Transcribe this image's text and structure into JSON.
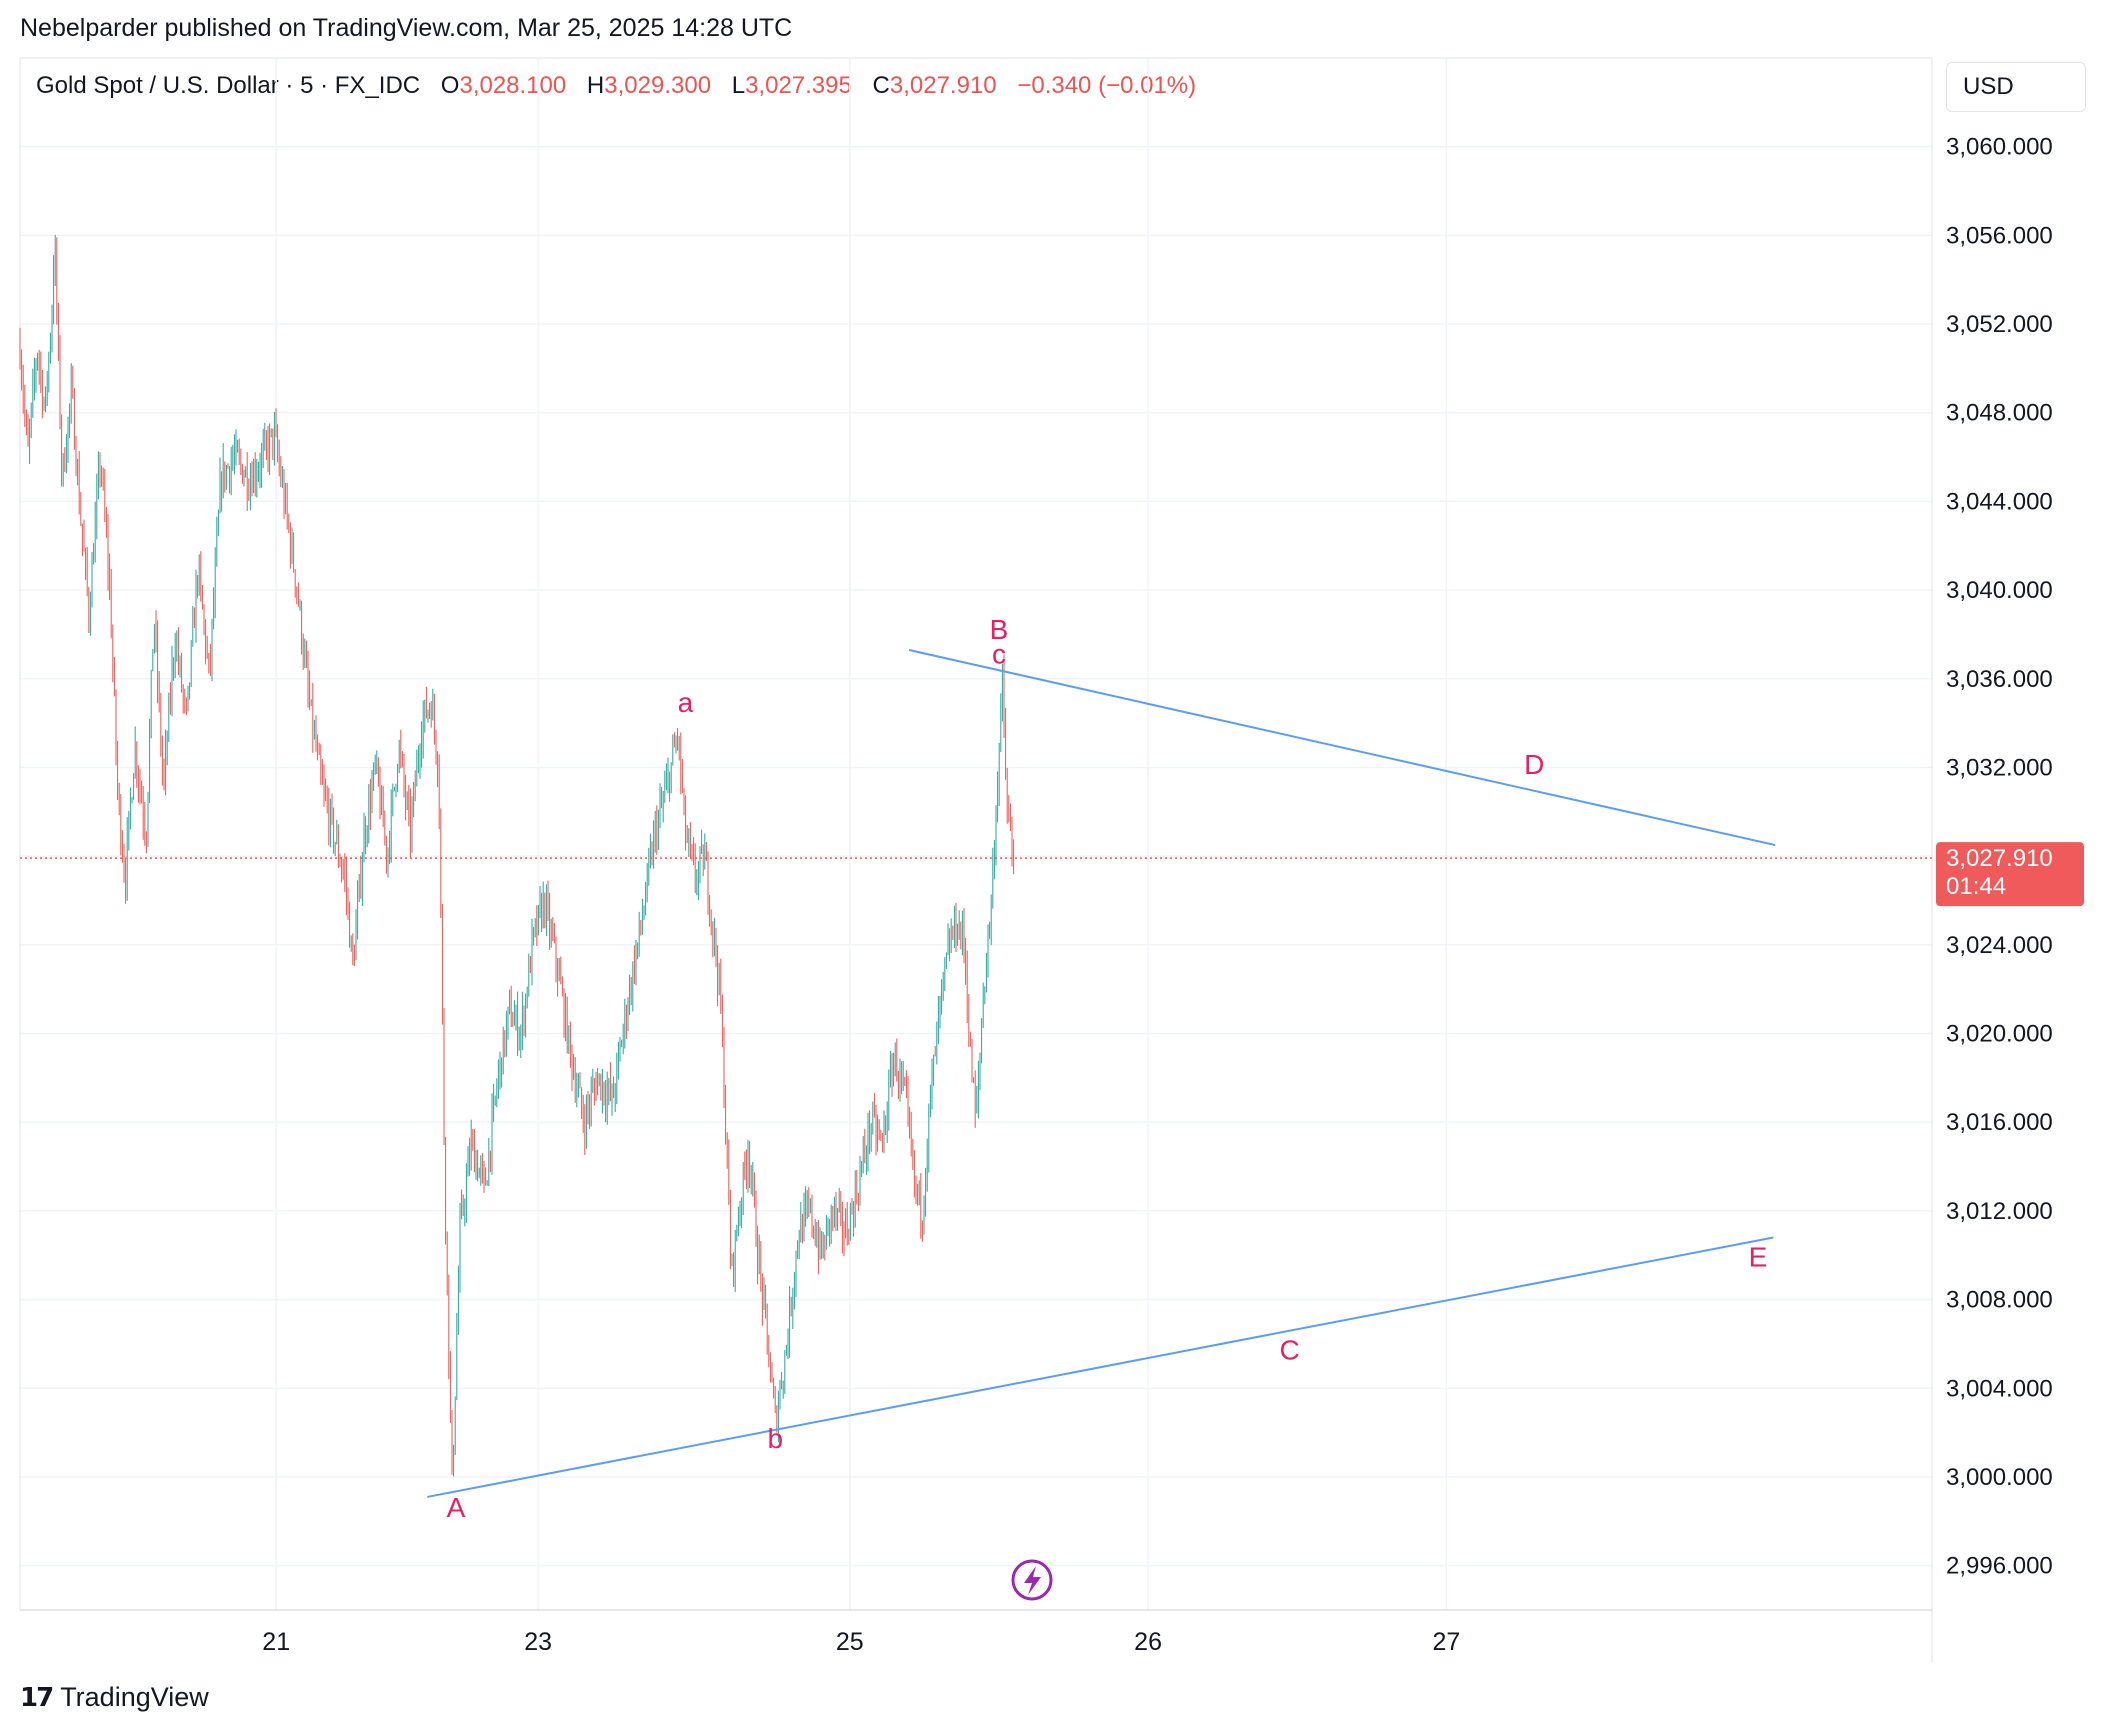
{
  "header": {
    "published": "Nebelparder published on TradingView.com, Mar 25, 2025 14:28 UTC"
  },
  "legend": {
    "symbol": "Gold Spot / U.S. Dollar · 5 · FX_IDC",
    "open_label": "O",
    "open": "3,028.100",
    "high_label": "H",
    "high": "3,029.300",
    "low_label": "L",
    "low": "3,027.395",
    "close_label": "C",
    "close": "3,027.910",
    "change": "−0.340 (−0.01%)"
  },
  "currency": "USD",
  "price_tag": {
    "value": "3,027.910",
    "countdown": "01:44"
  },
  "brand": {
    "logo": "17",
    "name": "TradingView"
  },
  "colors": {
    "up": "#26a69a",
    "down": "#ef5350",
    "trendline": "#5b9cf6",
    "wave_label": "#e91e63",
    "tag_bg": "#f05a5a"
  },
  "chart_data": {
    "type": "candlestick",
    "ylim": [
      2994,
      3064
    ],
    "yticks": [
      2996,
      3000,
      3004,
      3008,
      3012,
      3016,
      3020,
      3024,
      3028,
      3032,
      3036,
      3040,
      3044,
      3048,
      3052,
      3056,
      3060
    ],
    "ytick_labels": [
      "2,996.000",
      "3,000.000",
      "3,004.000",
      "3,008.000",
      "3,012.000",
      "3,016.000",
      "3,020.000",
      "3,024.000",
      "",
      "3,032.000",
      "3,036.000",
      "3,040.000",
      "3,044.000",
      "3,048.000",
      "3,052.000",
      "3,056.000",
      "3,060.000"
    ],
    "x_labels": [
      {
        "label": "21",
        "x": 0.134
      },
      {
        "label": "23",
        "x": 0.271
      },
      {
        "label": "25",
        "x": 0.434
      },
      {
        "label": "26",
        "x": 0.59
      },
      {
        "label": "27",
        "x": 0.746
      }
    ],
    "last_price": 3027.91,
    "price_path": [
      [
        0.0,
        3051
      ],
      [
        0.004,
        3046
      ],
      [
        0.009,
        3051
      ],
      [
        0.013,
        3048
      ],
      [
        0.017,
        3053
      ],
      [
        0.018,
        3056
      ],
      [
        0.022,
        3045
      ],
      [
        0.027,
        3049
      ],
      [
        0.031,
        3044
      ],
      [
        0.036,
        3039
      ],
      [
        0.042,
        3046
      ],
      [
        0.047,
        3040
      ],
      [
        0.051,
        3031
      ],
      [
        0.055,
        3027
      ],
      [
        0.06,
        3033
      ],
      [
        0.066,
        3029
      ],
      [
        0.07,
        3039
      ],
      [
        0.075,
        3031
      ],
      [
        0.081,
        3038
      ],
      [
        0.087,
        3034
      ],
      [
        0.093,
        3041
      ],
      [
        0.099,
        3036
      ],
      [
        0.105,
        3045
      ],
      [
        0.112,
        3046
      ],
      [
        0.12,
        3045
      ],
      [
        0.127,
        3046
      ],
      [
        0.133,
        3047
      ],
      [
        0.14,
        3043
      ],
      [
        0.145,
        3040
      ],
      [
        0.151,
        3035
      ],
      [
        0.158,
        3031
      ],
      [
        0.164,
        3029
      ],
      [
        0.17,
        3027
      ],
      [
        0.174,
        3023
      ],
      [
        0.18,
        3029
      ],
      [
        0.186,
        3032
      ],
      [
        0.192,
        3028
      ],
      [
        0.198,
        3033
      ],
      [
        0.204,
        3029
      ],
      [
        0.21,
        3034
      ],
      [
        0.215,
        3035
      ],
      [
        0.219,
        3032
      ],
      [
        0.222,
        3014
      ],
      [
        0.226,
        2999.4
      ],
      [
        0.23,
        3011
      ],
      [
        0.236,
        3015
      ],
      [
        0.243,
        3013
      ],
      [
        0.25,
        3018
      ],
      [
        0.256,
        3021
      ],
      [
        0.262,
        3020
      ],
      [
        0.268,
        3024
      ],
      [
        0.274,
        3026
      ],
      [
        0.281,
        3023
      ],
      [
        0.288,
        3019
      ],
      [
        0.295,
        3016
      ],
      [
        0.302,
        3018
      ],
      [
        0.31,
        3017
      ],
      [
        0.317,
        3021
      ],
      [
        0.325,
        3025
      ],
      [
        0.332,
        3029
      ],
      [
        0.338,
        3031
      ],
      [
        0.344,
        3033.5
      ],
      [
        0.348,
        3029
      ],
      [
        0.353,
        3027
      ],
      [
        0.358,
        3028
      ],
      [
        0.362,
        3025
      ],
      [
        0.366,
        3022
      ],
      [
        0.369,
        3016
      ],
      [
        0.372,
        3009
      ],
      [
        0.376,
        3012
      ],
      [
        0.381,
        3015
      ],
      [
        0.386,
        3010
      ],
      [
        0.391,
        3006
      ],
      [
        0.395,
        3002.5
      ],
      [
        0.401,
        3006
      ],
      [
        0.407,
        3011
      ],
      [
        0.413,
        3012
      ],
      [
        0.419,
        3010
      ],
      [
        0.425,
        3012
      ],
      [
        0.432,
        3011
      ],
      [
        0.438,
        3013
      ],
      [
        0.445,
        3016
      ],
      [
        0.451,
        3015
      ],
      [
        0.457,
        3019
      ],
      [
        0.463,
        3017
      ],
      [
        0.468,
        3013
      ],
      [
        0.472,
        3012
      ],
      [
        0.476,
        3017
      ],
      [
        0.481,
        3021
      ],
      [
        0.486,
        3024
      ],
      [
        0.49,
        3025
      ],
      [
        0.494,
        3024
      ],
      [
        0.497,
        3019
      ],
      [
        0.5,
        3016
      ],
      [
        0.504,
        3022
      ],
      [
        0.508,
        3026
      ],
      [
        0.511,
        3031
      ],
      [
        0.514,
        3036
      ],
      [
        0.516,
        3030
      ],
      [
        0.518,
        3029
      ],
      [
        0.52,
        3027.9
      ]
    ],
    "trendlines": [
      {
        "name": "upper",
        "from": [
          0.465,
          3037.3
        ],
        "to": [
          0.918,
          3028.5
        ]
      },
      {
        "name": "lower",
        "from": [
          0.213,
          2999.1
        ],
        "to": [
          0.917,
          3010.8
        ]
      }
    ],
    "wave_labels": [
      {
        "text": "A",
        "x": 0.228,
        "y": 2998.2
      },
      {
        "text": "a",
        "x": 0.348,
        "y": 3034.5
      },
      {
        "text": "b",
        "x": 0.395,
        "y": 3001.3
      },
      {
        "text": "B",
        "x": 0.512,
        "y": 3037.8
      },
      {
        "text": "c",
        "x": 0.512,
        "y": 3036.7
      },
      {
        "text": "C",
        "x": 0.664,
        "y": 3005.3
      },
      {
        "text": "D",
        "x": 0.792,
        "y": 3031.7
      },
      {
        "text": "E",
        "x": 0.909,
        "y": 3009.5
      }
    ]
  }
}
